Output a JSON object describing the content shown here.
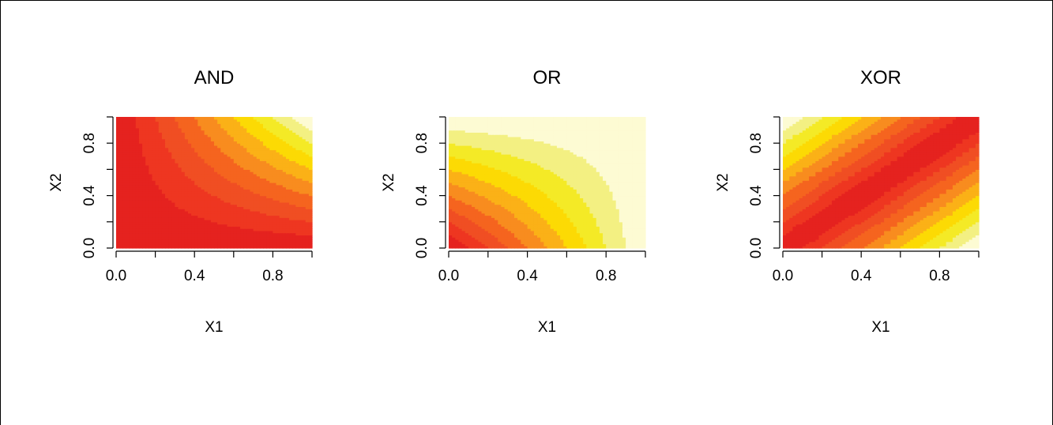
{
  "chart_data": [
    {
      "type": "heatmap",
      "title": "AND",
      "xlabel": "X1",
      "ylabel": "X2",
      "xlim": [
        0,
        1
      ],
      "ylim": [
        0,
        1
      ],
      "xticks": [
        "0.0",
        "0.4",
        "0.8"
      ],
      "yticks": [
        "0.0",
        "0.4",
        "0.8"
      ],
      "function": "and",
      "levels": 10,
      "palette": [
        "#e5221f",
        "#ee3621",
        "#f04e23",
        "#f5641f",
        "#f88c1f",
        "#fbb117",
        "#fcda04",
        "#f4ea26",
        "#f3f082",
        "#fdfbd3"
      ]
    },
    {
      "type": "heatmap",
      "title": "OR",
      "xlabel": "X1",
      "ylabel": "X2",
      "xlim": [
        0,
        1
      ],
      "ylim": [
        0,
        1
      ],
      "xticks": [
        "0.0",
        "0.4",
        "0.8"
      ],
      "yticks": [
        "0.0",
        "0.4",
        "0.8"
      ],
      "function": "or",
      "levels": 10,
      "palette": [
        "#e5221f",
        "#ee3621",
        "#f04e23",
        "#f5641f",
        "#f88c1f",
        "#fbb117",
        "#fcda04",
        "#f4ea26",
        "#f3f082",
        "#fdfbd3"
      ]
    },
    {
      "type": "heatmap",
      "title": "XOR",
      "xlabel": "X1",
      "ylabel": "X2",
      "xlim": [
        0,
        1
      ],
      "ylim": [
        0,
        1
      ],
      "xticks": [
        "0.0",
        "0.4",
        "0.8"
      ],
      "yticks": [
        "0.0",
        "0.4",
        "0.8"
      ],
      "function": "xor",
      "levels": 10,
      "palette": [
        "#e5221f",
        "#ee3621",
        "#f04e23",
        "#f5641f",
        "#f88c1f",
        "#fbb117",
        "#fcda04",
        "#f4ea26",
        "#f3f082",
        "#fdfbd3"
      ]
    }
  ]
}
